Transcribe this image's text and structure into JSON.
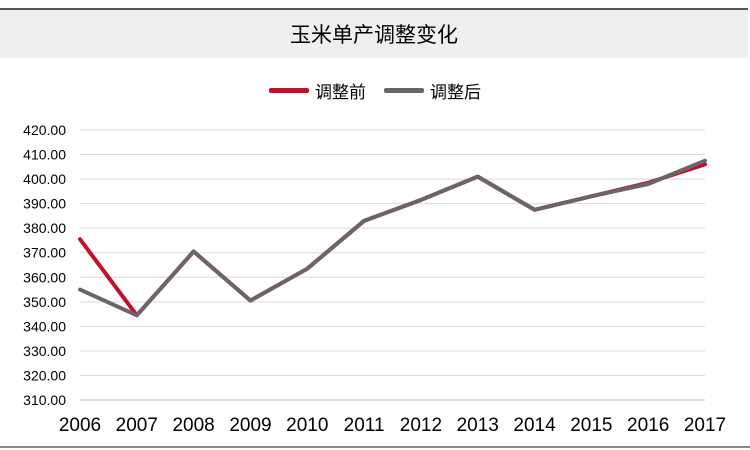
{
  "chart_data": {
    "type": "line",
    "title": "玉米单产调整变化",
    "xlabel": "",
    "ylabel": "",
    "categories": [
      "2006",
      "2007",
      "2008",
      "2009",
      "2010",
      "2011",
      "2012",
      "2013",
      "2014",
      "2015",
      "2016",
      "2017"
    ],
    "ylim": [
      310,
      420
    ],
    "yticks": [
      "310.00",
      "320.00",
      "330.00",
      "340.00",
      "350.00",
      "360.00",
      "370.00",
      "380.00",
      "390.00",
      "400.00",
      "410.00",
      "420.00"
    ],
    "grid": true,
    "legend": "top-center",
    "series": [
      {
        "name": "调整前",
        "color": "#c0102c",
        "values": [
          375.5,
          344.5,
          370.5,
          350.5,
          363.5,
          383.0,
          391.5,
          401.0,
          387.5,
          393.0,
          398.5,
          406.0
        ]
      },
      {
        "name": "调整后",
        "color": "#6b6567",
        "values": [
          355.0,
          344.5,
          370.5,
          350.5,
          363.5,
          383.0,
          391.5,
          401.0,
          387.5,
          393.0,
          398.0,
          407.5
        ]
      }
    ]
  }
}
